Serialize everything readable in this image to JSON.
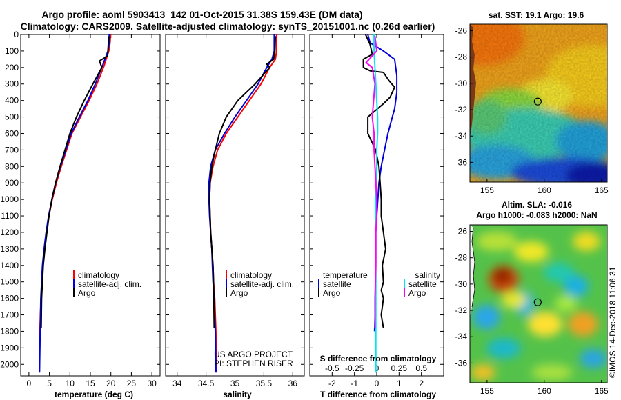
{
  "title": {
    "line1": "Argo profile: aoml 5903413_142 01-Oct-2015 31.38S 159.43E (DM data)",
    "line2": "Climatology: CARS2009. Satellite-adjusted climatology: synTS_20151001.nc (0.26d earlier)"
  },
  "colors": {
    "climatology": "#ff0000",
    "satellite": "#0000dd",
    "argo": "#000000",
    "sat_salinity": "#00e5ee",
    "argo_salinity": "#ff00ff"
  },
  "chart_data": [
    {
      "type": "line",
      "name": "temperature-profile",
      "xlabel": "temperature (deg C)",
      "ylabel": "",
      "xlim": [
        -2,
        32
      ],
      "ylim": [
        2070,
        0
      ],
      "xticks": [
        "0",
        "5",
        "10",
        "15",
        "20",
        "25",
        "30"
      ],
      "xtick_values": [
        0,
        5,
        10,
        15,
        20,
        25,
        30
      ],
      "yticks": [
        "0",
        "100",
        "200",
        "300",
        "400",
        "500",
        "600",
        "700",
        "800",
        "900",
        "1000",
        "1100",
        "1200",
        "1300",
        "1400",
        "1500",
        "1600",
        "1700",
        "1800",
        "1900",
        "2000"
      ],
      "ytick_values": [
        0,
        100,
        200,
        300,
        400,
        500,
        600,
        700,
        800,
        900,
        1000,
        1100,
        1200,
        1300,
        1400,
        1500,
        1600,
        1700,
        1800,
        1900,
        2000
      ],
      "legend": {
        "position": "lower-center",
        "items": [
          "climatology",
          "satellite-adj. clim.",
          "Argo"
        ]
      },
      "series": [
        {
          "name": "climatology",
          "color": "#ff0000",
          "x": [
            19.9,
            19.8,
            19.5,
            18.2,
            16.6,
            14.7,
            12.6,
            10.5,
            9.2,
            7.9,
            6.7,
            5.7,
            4.9,
            4.3,
            3.8,
            3.4,
            3.2,
            3.0,
            2.8,
            2.7,
            2.55
          ],
          "y": [
            0,
            50,
            100,
            200,
            300,
            400,
            500,
            600,
            700,
            800,
            900,
            1000,
            1100,
            1200,
            1300,
            1400,
            1500,
            1600,
            1700,
            1800,
            2050
          ]
        },
        {
          "name": "satellite-adj. clim.",
          "color": "#0000dd",
          "x": [
            19.6,
            19.6,
            19.3,
            17.8,
            16.2,
            14.4,
            12.3,
            10.3,
            9.0,
            7.7,
            6.5,
            5.6,
            4.8,
            4.2,
            3.7,
            3.3,
            3.1,
            2.9,
            2.75,
            2.6
          ],
          "y": [
            0,
            50,
            100,
            200,
            300,
            400,
            500,
            600,
            700,
            800,
            900,
            1000,
            1100,
            1200,
            1300,
            1400,
            1500,
            1600,
            1800,
            2050
          ]
        },
        {
          "name": "Argo",
          "color": "#000000",
          "x": [
            19.5,
            19.4,
            19.2,
            17.2,
            17.8,
            15.6,
            13.5,
            11.6,
            10.0,
            8.8,
            7.6,
            6.5,
            5.6,
            4.9,
            4.4,
            3.9,
            3.5,
            3.3,
            3.1,
            3.0
          ],
          "y": [
            10,
            50,
            130,
            160,
            200,
            300,
            400,
            500,
            600,
            700,
            800,
            900,
            1000,
            1100,
            1200,
            1300,
            1400,
            1500,
            1600,
            1780
          ]
        }
      ]
    },
    {
      "type": "line",
      "name": "salinity-profile",
      "xlabel": "salinity",
      "ylabel": "",
      "xlim": [
        33.8,
        36.2
      ],
      "ylim": [
        2070,
        0
      ],
      "xticks": [
        "34",
        "34.5",
        "35",
        "35.5",
        "36"
      ],
      "xtick_values": [
        34,
        34.5,
        35,
        35.5,
        36
      ],
      "legend": {
        "position": "lower-right",
        "items": [
          "climatology",
          "satellite-adj. clim.",
          "Argo"
        ]
      },
      "annotation": [
        "US ARGO PROJECT",
        "PI: STEPHEN RISER"
      ],
      "series": [
        {
          "name": "climatology",
          "color": "#ff0000",
          "x": [
            35.72,
            35.72,
            35.7,
            35.6,
            35.45,
            35.25,
            35.05,
            34.85,
            34.7,
            34.62,
            34.57,
            34.56,
            34.57,
            34.58,
            34.6,
            34.62,
            34.63,
            34.65,
            34.67,
            34.68
          ],
          "y": [
            0,
            100,
            150,
            200,
            300,
            400,
            500,
            600,
            700,
            800,
            900,
            1000,
            1100,
            1200,
            1300,
            1400,
            1500,
            1600,
            1800,
            2050
          ]
        },
        {
          "name": "satellite-adj. clim.",
          "color": "#0000dd",
          "x": [
            35.68,
            35.68,
            35.64,
            35.55,
            35.4,
            35.2,
            35.0,
            34.82,
            34.66,
            34.58,
            34.55,
            34.55,
            34.56,
            34.58,
            34.6,
            34.61,
            34.62,
            34.64,
            34.66,
            34.67
          ],
          "y": [
            0,
            100,
            150,
            200,
            300,
            400,
            500,
            600,
            700,
            800,
            900,
            1000,
            1100,
            1200,
            1300,
            1400,
            1500,
            1600,
            1800,
            2050
          ]
        },
        {
          "name": "Argo",
          "color": "#000000",
          "x": [
            35.7,
            35.69,
            35.67,
            35.55,
            35.6,
            35.35,
            35.05,
            34.85,
            34.73,
            34.66,
            34.6,
            34.57,
            34.56,
            34.57,
            34.58,
            34.6,
            34.62,
            34.63,
            34.64
          ],
          "y": [
            10,
            100,
            150,
            180,
            200,
            300,
            400,
            500,
            600,
            700,
            800,
            900,
            1000,
            1100,
            1200,
            1300,
            1400,
            1500,
            1780
          ]
        }
      ]
    },
    {
      "type": "line",
      "name": "difference-profile",
      "xlabel": "T difference from climatology",
      "xlabel_top": "S difference from climatology",
      "ylabel": "",
      "xlim": [
        -3,
        3
      ],
      "ylim": [
        2070,
        0
      ],
      "xticks": [
        "-2",
        "-1",
        "0",
        "1",
        "2"
      ],
      "xtick_values": [
        -2,
        -1,
        0,
        1,
        2
      ],
      "xticks_top": [
        "-0.5",
        "-0.25",
        "0",
        "0.25",
        "0.5"
      ],
      "xtick_top_values": [
        -0.5,
        -0.25,
        0,
        0.25,
        0.5
      ],
      "legend": {
        "left_title": "temperature",
        "left_items": [
          "satellite",
          "Argo"
        ],
        "right_title": "salinity",
        "right_items": [
          "satellite",
          "Argo"
        ]
      },
      "series": [
        {
          "name": "temperature satellite",
          "color": "#0000dd",
          "x": [
            -0.4,
            -0.3,
            0.3,
            0.8,
            0.9,
            0.9,
            0.8,
            0.7,
            0.5,
            0.35,
            0.2,
            0.1,
            0.05,
            0.0,
            -0.05,
            -0.05,
            -0.05,
            -0.05,
            -0.1
          ],
          "y": [
            0,
            50,
            100,
            150,
            250,
            350,
            450,
            500,
            600,
            700,
            800,
            900,
            1000,
            1100,
            1200,
            1300,
            1400,
            1600,
            1800
          ]
        },
        {
          "name": "temperature Argo",
          "color": "#000000",
          "x": [
            -0.5,
            -0.3,
            -0.2,
            -0.6,
            -0.6,
            -0.3,
            0.3,
            0.55,
            0.8,
            0.6,
            0.3,
            -0.4,
            -0.4,
            -0.05,
            0.1,
            0.15,
            0.2,
            0.2,
            0.3,
            0.4,
            0.25,
            0.3,
            0.2,
            0.3,
            0.25,
            0.2,
            0.3
          ],
          "y": [
            0,
            60,
            120,
            150,
            200,
            220,
            230,
            280,
            320,
            380,
            420,
            500,
            600,
            700,
            800,
            900,
            1000,
            1100,
            1200,
            1300,
            1400,
            1500,
            1550,
            1600,
            1650,
            1700,
            1780
          ]
        },
        {
          "name": "salinity satellite",
          "color": "#00e5ee",
          "x": [
            -0.03,
            -0.03,
            -0.02,
            -0.01,
            0.0,
            0.01,
            0.01,
            0.0,
            0.0,
            -0.01,
            -0.01,
            -0.01,
            -0.01,
            -0.01,
            -0.01,
            -0.01
          ],
          "y": [
            0,
            100,
            200,
            300,
            400,
            500,
            600,
            700,
            800,
            1000,
            1200,
            1400,
            1600,
            1800,
            1950,
            2050
          ]
        },
        {
          "name": "salinity Argo",
          "color": "#ff00ff",
          "x": [
            -0.02,
            0.0,
            -0.12,
            -0.05,
            -0.02,
            -0.05,
            -0.03,
            -0.03,
            -0.02,
            -0.01,
            0.0,
            0.0,
            -0.01,
            -0.01,
            -0.02,
            -0.02,
            -0.02
          ],
          "y": [
            10,
            100,
            170,
            200,
            300,
            500,
            600,
            700,
            800,
            900,
            1000,
            1100,
            1200,
            1400,
            1600,
            1700,
            1780
          ]
        }
      ]
    }
  ],
  "maps": [
    {
      "name": "sst-map",
      "title": "sat. SST: 19.1 Argo: 19.6",
      "lon_ticks": [
        "155",
        "160",
        "165"
      ],
      "lon_values": [
        155,
        160,
        165
      ],
      "lat_ticks": [
        "-26",
        "-28",
        "-30",
        "-32",
        "-34",
        "-36"
      ],
      "lat_values": [
        -26,
        -28,
        -30,
        -32,
        -34,
        -36
      ],
      "lon_range": [
        153.5,
        165.5
      ],
      "lat_range": [
        -37.5,
        -25.5
      ],
      "profile_location": {
        "lon": 159.43,
        "lat": -31.38
      }
    },
    {
      "name": "sla-map",
      "title_line1": "Altim. SLA: -0.016",
      "title_line2": "Argo h1000: -0.083 h2000: NaN",
      "lon_ticks": [
        "155",
        "160",
        "165"
      ],
      "lon_values": [
        155,
        160,
        165
      ],
      "lat_ticks": [
        "-26",
        "-28",
        "-30",
        "-32",
        "-34",
        "-36"
      ],
      "lat_values": [
        -26,
        -28,
        -30,
        -32,
        -34,
        -36
      ],
      "lon_range": [
        153.5,
        165.5
      ],
      "lat_range": [
        -37.5,
        -25.5
      ],
      "profile_location": {
        "lon": 159.43,
        "lat": -31.38
      }
    }
  ],
  "credit": "©IMOS 14-Dec-2018 11:06:31"
}
